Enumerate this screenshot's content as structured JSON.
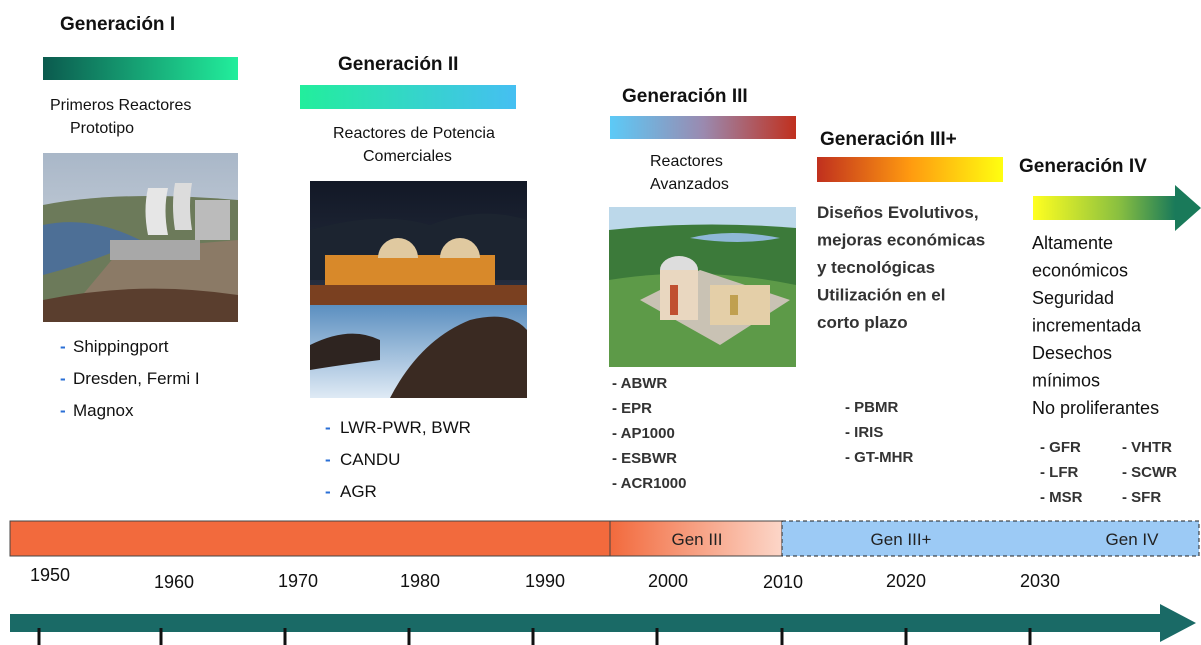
{
  "generations": [
    {
      "title": "Generación I",
      "description": [
        "Primeros Reactores",
        "Prototipo"
      ],
      "items": [
        "Shippingport",
        "Dresden, Fermi I",
        "Magnox"
      ]
    },
    {
      "title": "Generación II",
      "description": [
        "Reactores de Potencia",
        "Comerciales"
      ],
      "items": [
        "LWR-PWR, BWR",
        "CANDU",
        "AGR"
      ]
    },
    {
      "title": "Generación III",
      "description": [
        "Reactores",
        "Avanzados"
      ],
      "items": [
        "- ABWR",
        "- EPR",
        "- AP1000",
        "- ESBWR",
        "- ACR1000"
      ]
    },
    {
      "title": "Generación III+",
      "description": [
        "Diseños Evolutivos,",
        "mejoras económicas",
        "y tecnológicas",
        "Utilización en el",
        "corto plazo"
      ],
      "items": [
        "- PBMR",
        "- IRIS",
        "- GT-MHR"
      ]
    },
    {
      "title": "Generación IV",
      "description": [
        "Altamente",
        "económicos",
        "Seguridad",
        "incrementada",
        "Desechos",
        "mínimos",
        "No proliferantes"
      ],
      "items": [
        "- GFR",
        "- LFR",
        "- MSR",
        "- VHTR",
        "- SCWR",
        "- SFR"
      ]
    }
  ],
  "timeline": {
    "segments": [
      "Gen III",
      "Gen III+",
      "Gen IV"
    ]
  },
  "axis": {
    "years": [
      "1950",
      "1960",
      "1970",
      "1980",
      "1990",
      "2000",
      "2010",
      "2020",
      "2030"
    ]
  }
}
